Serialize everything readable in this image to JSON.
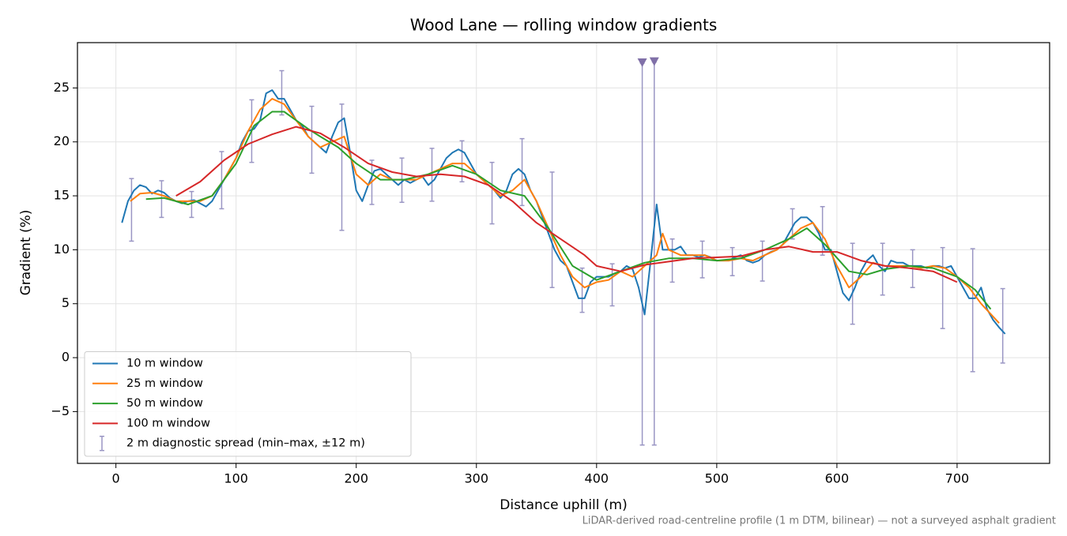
{
  "chart_data": {
    "type": "line",
    "title": "Wood Lane — rolling window gradients",
    "x_label": "Distance uphill (m)",
    "y_label": "Gradient (%)",
    "footnote": "LiDAR-derived road-centreline profile (1 m DTM, bilinear) — not a surveyed asphalt gradient",
    "xlim": [
      -32,
      777
    ],
    "ylim": [
      -9.8,
      29.2
    ],
    "xticks": [
      0,
      100,
      200,
      300,
      400,
      500,
      600,
      700
    ],
    "yticks": [
      {
        "value": -5,
        "label": "−5"
      },
      0,
      5,
      10,
      15,
      20,
      25
    ],
    "grid": true,
    "legend": "lower left",
    "series": [
      {
        "name": "10 m window",
        "color": "#1f77b4",
        "x": [
          5,
          10,
          15,
          20,
          25,
          30,
          35,
          40,
          45,
          50,
          55,
          60,
          65,
          70,
          75,
          80,
          85,
          90,
          95,
          100,
          105,
          110,
          115,
          120,
          125,
          130,
          135,
          140,
          145,
          150,
          155,
          160,
          165,
          170,
          175,
          180,
          185,
          190,
          195,
          200,
          205,
          210,
          215,
          220,
          225,
          230,
          235,
          240,
          245,
          250,
          255,
          260,
          265,
          270,
          275,
          280,
          285,
          290,
          295,
          300,
          305,
          310,
          315,
          320,
          325,
          330,
          335,
          340,
          345,
          350,
          355,
          360,
          365,
          370,
          375,
          380,
          385,
          390,
          395,
          400,
          405,
          410,
          415,
          420,
          425,
          430,
          435,
          440,
          445,
          450,
          455,
          460,
          465,
          470,
          475,
          480,
          485,
          490,
          495,
          500,
          505,
          510,
          515,
          520,
          525,
          530,
          535,
          540,
          545,
          550,
          555,
          560,
          565,
          570,
          575,
          580,
          585,
          590,
          595,
          600,
          605,
          610,
          615,
          620,
          625,
          630,
          635,
          640,
          645,
          650,
          655,
          660,
          665,
          670,
          675,
          680,
          685,
          690,
          695,
          700,
          705,
          710,
          715,
          720,
          725,
          730,
          735,
          740
        ],
        "values": [
          12.5,
          14.5,
          15.5,
          16,
          15.8,
          15.2,
          15.5,
          15.3,
          14.8,
          14.5,
          14.3,
          14.5,
          14.6,
          14.3,
          14,
          14.5,
          15.5,
          16.5,
          17.5,
          18.5,
          20,
          21,
          21.2,
          22,
          24.5,
          24.8,
          24,
          24,
          23,
          22,
          21.5,
          20.5,
          20,
          19.5,
          19,
          20.5,
          21.8,
          22.2,
          19,
          15.5,
          14.5,
          16,
          17.3,
          17.5,
          17,
          16.5,
          16,
          16.5,
          16.2,
          16.5,
          16.8,
          16,
          16.5,
          17.5,
          18.5,
          19,
          19.3,
          19,
          18,
          17,
          16.5,
          16,
          15.5,
          14.8,
          15.5,
          17,
          17.5,
          17,
          15.5,
          14.5,
          13,
          11.5,
          10,
          9,
          8.5,
          7,
          5.5,
          5.5,
          7,
          7.5,
          7.5,
          7.5,
          7.8,
          8,
          8.5,
          8.2,
          6.5,
          4,
          9,
          14.2,
          10,
          10,
          10,
          10.3,
          9.5,
          9.5,
          9.3,
          9.5,
          9.3,
          9,
          9,
          9,
          9.3,
          9.5,
          9,
          8.8,
          9,
          9.5,
          9.8,
          10,
          10.5,
          11.5,
          12.5,
          13,
          13,
          12.5,
          11.5,
          10,
          10,
          8,
          6,
          5.3,
          6.5,
          8,
          9,
          9.5,
          8.5,
          8,
          9,
          8.8,
          8.8,
          8.5,
          8.5,
          8.5,
          8.3,
          8.5,
          8.5,
          8.3,
          8.5,
          7.5,
          6.5,
          5.5,
          5.5,
          6.5,
          4.5,
          3.5,
          2.8,
          2.2
        ]
      },
      {
        "name": "25 m window",
        "color": "#ff7f0e",
        "x": [
          12,
          20,
          30,
          40,
          50,
          60,
          70,
          80,
          90,
          100,
          110,
          120,
          130,
          140,
          150,
          160,
          170,
          180,
          190,
          200,
          210,
          220,
          230,
          240,
          250,
          260,
          270,
          280,
          290,
          300,
          310,
          320,
          330,
          340,
          350,
          360,
          370,
          380,
          390,
          400,
          410,
          420,
          430,
          440,
          450,
          455,
          460,
          470,
          480,
          490,
          500,
          510,
          520,
          530,
          540,
          550,
          560,
          570,
          580,
          590,
          600,
          610,
          620,
          630,
          640,
          650,
          660,
          670,
          680,
          690,
          700,
          710,
          720,
          730,
          735
        ],
        "values": [
          14.5,
          15.2,
          15.3,
          15,
          14.5,
          14.5,
          14.5,
          15,
          16.5,
          18.5,
          21,
          23,
          24,
          23.5,
          22,
          20.5,
          19.5,
          20,
          20.5,
          17,
          16,
          17,
          16.5,
          16.5,
          16.5,
          17,
          17.5,
          18,
          18,
          17,
          16,
          15,
          15.5,
          16.5,
          14.5,
          12,
          9.5,
          7.5,
          6.5,
          7,
          7.2,
          8,
          7.5,
          8.5,
          9.5,
          11.5,
          10,
          9.5,
          9.5,
          9.5,
          9,
          9,
          9.2,
          9,
          9.5,
          10,
          11,
          12,
          12.5,
          11,
          8.5,
          6.5,
          7.5,
          8.8,
          8.5,
          8.5,
          8.5,
          8.3,
          8.5,
          8.3,
          7.5,
          6.5,
          5,
          3.8,
          3.2
        ]
      },
      {
        "name": "50 m window",
        "color": "#2ca02c",
        "x": [
          25,
          40,
          60,
          80,
          100,
          115,
          130,
          140,
          150,
          160,
          170,
          185,
          200,
          220,
          240,
          260,
          280,
          300,
          320,
          340,
          360,
          380,
          400,
          420,
          440,
          460,
          480,
          500,
          520,
          540,
          560,
          575,
          590,
          610,
          625,
          640,
          660,
          680,
          700,
          715,
          728
        ],
        "values": [
          14.7,
          14.8,
          14.2,
          15,
          18,
          21.5,
          22.8,
          22.8,
          22,
          21.2,
          20.5,
          19.5,
          18,
          16.5,
          16.5,
          17,
          17.8,
          17,
          15.5,
          15,
          12,
          8.5,
          7.2,
          8,
          8.8,
          9.2,
          9.2,
          9,
          9.2,
          10,
          11,
          12,
          10.5,
          8,
          7.7,
          8.2,
          8.5,
          8.3,
          7.5,
          6.3,
          4.5
        ]
      },
      {
        "name": "100 m window",
        "color": "#d62728",
        "x": [
          50,
          70,
          90,
          110,
          130,
          150,
          170,
          190,
          210,
          230,
          250,
          270,
          290,
          310,
          330,
          350,
          370,
          390,
          400,
          420,
          440,
          460,
          480,
          500,
          520,
          540,
          560,
          580,
          600,
          620,
          640,
          660,
          680,
          700
        ],
        "values": [
          15,
          16.3,
          18.3,
          19.8,
          20.7,
          21.4,
          20.8,
          19.5,
          18,
          17.2,
          16.8,
          17,
          16.8,
          16,
          14.5,
          12.5,
          11,
          9.5,
          8.5,
          8,
          8.6,
          8.9,
          9.2,
          9.3,
          9.4,
          10,
          10.3,
          9.8,
          9.8,
          9,
          8.5,
          8.3,
          8,
          7
        ]
      }
    ],
    "spread": {
      "name": "2 m diagnostic spread (min–max, ±12 m)",
      "color": "#9a96c4",
      "x": [
        13,
        38,
        63,
        88,
        113,
        138,
        163,
        188,
        213,
        238,
        263,
        288,
        313,
        338,
        363,
        388,
        413,
        438,
        448,
        463,
        488,
        513,
        538,
        563,
        588,
        613,
        638,
        663,
        688,
        713,
        738
      ],
      "lower": [
        10.8,
        13,
        13,
        13.8,
        18.1,
        22.5,
        17.1,
        11.8,
        14.2,
        14.4,
        14.5,
        16.3,
        12.4,
        14.1,
        6.5,
        4.2,
        4.8,
        -8.1,
        -8.1,
        7,
        7.4,
        7.6,
        7.1,
        11,
        9.5,
        3.1,
        5.8,
        6.5,
        2.7,
        -1.3,
        -0.5
      ],
      "upper": [
        16.6,
        16.4,
        15.4,
        19.1,
        23.9,
        26.6,
        23.3,
        23.5,
        18.3,
        18.5,
        19.4,
        20.1,
        18.1,
        20.3,
        17.2,
        8.3,
        8.7,
        27.3,
        27.4,
        11,
        10.8,
        10.2,
        10.8,
        13.8,
        14,
        10.6,
        10.6,
        10,
        10.2,
        10.1,
        6.4
      ]
    }
  }
}
